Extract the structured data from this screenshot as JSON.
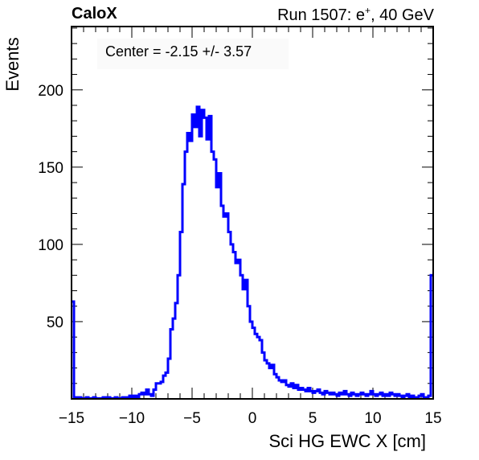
{
  "header": {
    "experiment": "CaloX",
    "run_prefix": "Run 1507: e",
    "run_sup": "+",
    "run_suffix": ", 40 GeV"
  },
  "annotation": "Center = -2.15 +/- 3.57",
  "colors": {
    "line": "#0000ff",
    "axes": "#000000"
  },
  "chart_data": {
    "type": "line",
    "title": "",
    "xlabel": "Sci HG EWC X [cm]",
    "ylabel": "Events",
    "xlim": [
      -15,
      15
    ],
    "ylim": [
      0,
      241
    ],
    "grid": false,
    "legend": "none",
    "xticks": [
      -15,
      -10,
      -5,
      0,
      5,
      10,
      15
    ],
    "xtick_labels": [
      "−15",
      "−10",
      "−5",
      "0",
      "5",
      "10",
      "15"
    ],
    "yticks": [
      50,
      100,
      150,
      200
    ],
    "ytick_labels": [
      "50",
      "100",
      "150",
      "200"
    ],
    "series": [
      {
        "style": "step",
        "bin_width": 0.2,
        "x": [
          -15.0,
          -14.8,
          -14.6,
          -14.4,
          -14.2,
          -14.0,
          -13.8,
          -13.6,
          -13.4,
          -13.2,
          -13.0,
          -12.8,
          -12.6,
          -12.4,
          -12.2,
          -12.0,
          -11.8,
          -11.6,
          -11.4,
          -11.2,
          -11.0,
          -10.8,
          -10.6,
          -10.4,
          -10.2,
          -10.0,
          -9.8,
          -9.6,
          -9.4,
          -9.2,
          -9.0,
          -8.8,
          -8.6,
          -8.4,
          -8.2,
          -8.0,
          -7.8,
          -7.6,
          -7.4,
          -7.2,
          -7.0,
          -6.8,
          -6.6,
          -6.4,
          -6.2,
          -6.0,
          -5.8,
          -5.6,
          -5.4,
          -5.2,
          -5.0,
          -4.8,
          -4.6,
          -4.4,
          -4.2,
          -4.0,
          -3.8,
          -3.6,
          -3.4,
          -3.2,
          -3.0,
          -2.8,
          -2.6,
          -2.4,
          -2.2,
          -2.0,
          -1.8,
          -1.6,
          -1.4,
          -1.2,
          -1.0,
          -0.8,
          -0.6,
          -0.4,
          -0.2,
          0.0,
          0.2,
          0.4,
          0.6,
          0.8,
          1.0,
          1.2,
          1.4,
          1.6,
          1.8,
          2.0,
          2.2,
          2.4,
          2.6,
          2.8,
          3.0,
          3.2,
          3.4,
          3.6,
          3.8,
          4.0,
          4.2,
          4.4,
          4.6,
          4.8,
          5.0,
          5.2,
          5.4,
          5.6,
          5.8,
          6.0,
          6.2,
          6.4,
          6.6,
          6.8,
          7.0,
          7.2,
          7.4,
          7.6,
          7.8,
          8.0,
          8.2,
          8.4,
          8.6,
          8.8,
          9.0,
          9.2,
          9.4,
          9.6,
          9.8,
          10.0,
          10.2,
          10.4,
          10.6,
          10.8,
          11.0,
          11.2,
          11.4,
          11.6,
          11.8,
          12.0,
          12.2,
          12.4,
          12.6,
          12.8,
          13.0,
          13.2,
          13.4,
          13.6,
          13.8,
          14.0,
          14.2,
          14.4,
          14.6,
          14.8
        ],
        "values": [
          63,
          1,
          0,
          1,
          0,
          0,
          1,
          0,
          0,
          1,
          0,
          0,
          0,
          1,
          0,
          1,
          0,
          0,
          1,
          0,
          0,
          1,
          1,
          0,
          2,
          1,
          2,
          1,
          3,
          4,
          3,
          6,
          3,
          2,
          6,
          10,
          10,
          11,
          15,
          17,
          26,
          45,
          52,
          62,
          80,
          108,
          139,
          160,
          172,
          167,
          184,
          176,
          189,
          170,
          187,
          182,
          168,
          183,
          160,
          155,
          137,
          146,
          125,
          118,
          120,
          108,
          100,
          95,
          88,
          90,
          80,
          71,
          77,
          60,
          50,
          46,
          42,
          40,
          38,
          30,
          25,
          23,
          20,
          22,
          16,
          14,
          12,
          11,
          12,
          9,
          8,
          10,
          7,
          9,
          6,
          7,
          6,
          5,
          7,
          5,
          4,
          5,
          6,
          4,
          3,
          5,
          4,
          3,
          4,
          3,
          2,
          4,
          3,
          5,
          3,
          2,
          4,
          3,
          2,
          3,
          4,
          3,
          2,
          3,
          5,
          3,
          2,
          3,
          4,
          2,
          3,
          2,
          4,
          3,
          2,
          3,
          2,
          1,
          2,
          3,
          1,
          2,
          1,
          1,
          2,
          3,
          1,
          1,
          2,
          80
        ]
      }
    ]
  }
}
